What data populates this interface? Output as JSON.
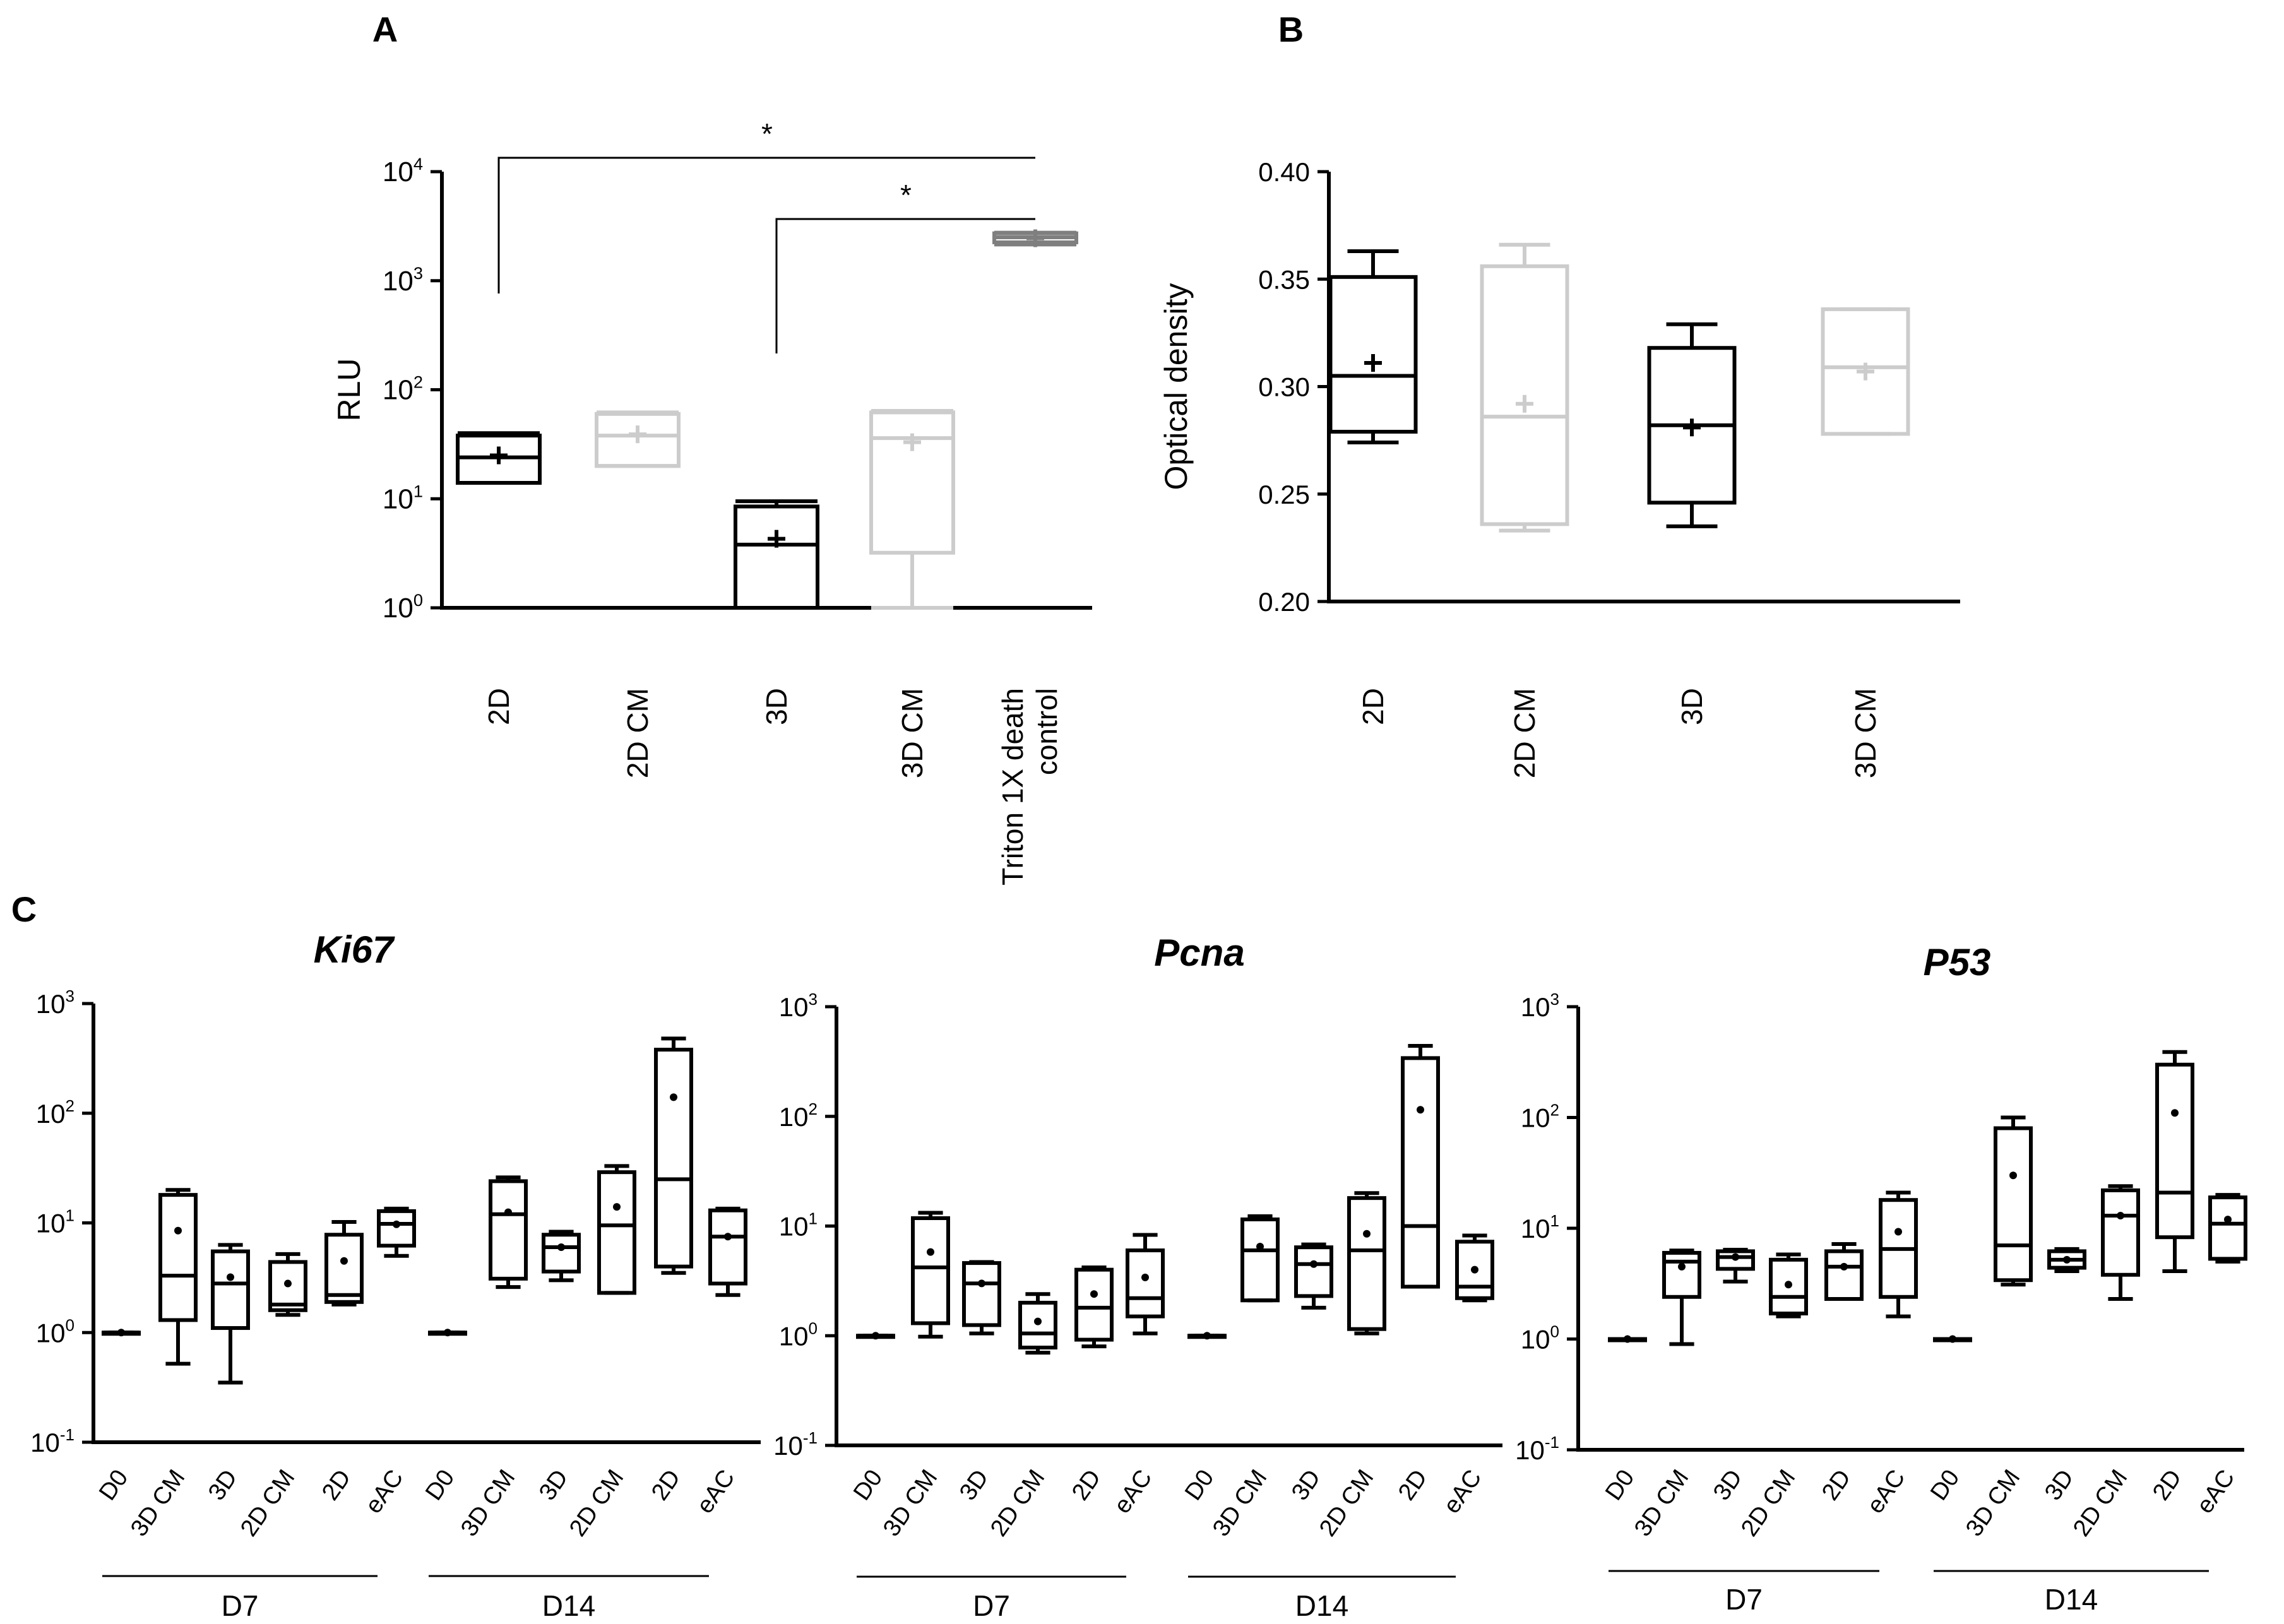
{
  "panel_labels": {
    "a": "A",
    "b": "B",
    "c": "C"
  },
  "colors": {
    "black": "#000000",
    "gray": "#cccccc",
    "triton": "#7f7f7f"
  },
  "chart_data": [
    {
      "id": "A",
      "type": "box",
      "scale": "log",
      "ylabel": "RLU",
      "ylim": [
        1,
        10000
      ],
      "yticks": [
        {
          "base": "10",
          "exp": "0"
        },
        {
          "base": "10",
          "exp": "1"
        },
        {
          "base": "10",
          "exp": "2"
        },
        {
          "base": "10",
          "exp": "3"
        },
        {
          "base": "10",
          "exp": "4"
        }
      ],
      "categories": [
        "2D",
        "2D CM",
        "3D",
        "3D CM",
        "Triton 1X death|control"
      ],
      "boxes": [
        {
          "color": "black",
          "min": 14,
          "q1": 14,
          "median": 24,
          "q3": 38,
          "max": 40,
          "mean": 25
        },
        {
          "color": "gray",
          "min": 20,
          "q1": 20,
          "median": 38,
          "q3": 60,
          "max": 62,
          "mean": 39
        },
        {
          "color": "black",
          "min": 1,
          "q1": 1,
          "median": 3.8,
          "q3": 8.5,
          "max": 9.5,
          "mean": 4.3
        },
        {
          "color": "gray",
          "min": 1,
          "q1": 3.2,
          "median": 36,
          "q3": 62,
          "max": 64,
          "mean": 33
        },
        {
          "color": "triton",
          "min": 2150,
          "q1": 2250,
          "median": 2500,
          "q3": 2720,
          "max": 2760,
          "mean": 2450
        }
      ],
      "significance": [
        {
          "from": 0,
          "to": 4,
          "label": "*"
        },
        {
          "from": 2,
          "to": 4,
          "label": "*"
        }
      ]
    },
    {
      "id": "B",
      "type": "box",
      "scale": "linear",
      "ylabel": "Optical density",
      "ylim": [
        0.2,
        0.4
      ],
      "yticks": [
        "0.20",
        "0.25",
        "0.30",
        "0.35",
        "0.40"
      ],
      "categories": [
        "2D",
        "2D CM",
        "3D",
        "3D CM"
      ],
      "boxes": [
        {
          "color": "black",
          "min": 0.274,
          "q1": 0.279,
          "median": 0.305,
          "q3": 0.351,
          "max": 0.363,
          "mean": 0.311
        },
        {
          "color": "gray",
          "min": 0.233,
          "q1": 0.236,
          "median": 0.286,
          "q3": 0.356,
          "max": 0.366,
          "mean": 0.292
        },
        {
          "color": "black",
          "min": 0.235,
          "q1": 0.246,
          "median": 0.282,
          "q3": 0.318,
          "max": 0.329,
          "mean": 0.281
        },
        {
          "color": "gray",
          "min": 0.278,
          "q1": 0.278,
          "median": 0.309,
          "q3": 0.336,
          "max": 0.336,
          "mean": 0.307
        }
      ]
    },
    {
      "id": "Ki67",
      "type": "box",
      "scale": "log",
      "title": "Ki67",
      "ylim": [
        0.1,
        1000
      ],
      "yticks": [
        {
          "base": "10",
          "exp": "-1"
        },
        {
          "base": "10",
          "exp": "0"
        },
        {
          "base": "10",
          "exp": "1"
        },
        {
          "base": "10",
          "exp": "2"
        },
        {
          "base": "10",
          "exp": "3"
        }
      ],
      "categories": [
        "D0",
        "3D CM",
        "3D",
        "2D CM",
        "2D",
        "eAC",
        "D0",
        "3D CM",
        "3D",
        "2D CM",
        "2D",
        "eAC"
      ],
      "groups": [
        {
          "label": "D7",
          "from": 0,
          "to": 5
        },
        {
          "label": "D14",
          "from": 6,
          "to": 11
        }
      ],
      "boxes": [
        {
          "min": 1,
          "q1": 1,
          "median": 1,
          "q3": 1,
          "max": 1,
          "mean": 1
        },
        {
          "min": 0.52,
          "q1": 1.3,
          "median": 3.3,
          "q3": 18,
          "max": 20,
          "mean": 8.5
        },
        {
          "min": 0.35,
          "q1": 1.1,
          "median": 2.8,
          "q3": 5.5,
          "max": 6.3,
          "mean": 3.2
        },
        {
          "min": 1.45,
          "q1": 1.6,
          "median": 1.8,
          "q3": 4.4,
          "max": 5.2,
          "mean": 2.8
        },
        {
          "min": 1.8,
          "q1": 1.9,
          "median": 2.2,
          "q3": 7.8,
          "max": 10.2,
          "mean": 4.5
        },
        {
          "min": 5,
          "q1": 6.2,
          "median": 9.8,
          "q3": 12.8,
          "max": 13.5,
          "mean": 9.7
        },
        {
          "min": 1,
          "q1": 1,
          "median": 1,
          "q3": 1,
          "max": 1,
          "mean": 1
        },
        {
          "min": 2.6,
          "q1": 3.1,
          "median": 12,
          "q3": 24,
          "max": 26,
          "mean": 12.5
        },
        {
          "min": 3,
          "q1": 3.6,
          "median": 6,
          "q3": 7.8,
          "max": 8.3,
          "mean": 6
        },
        {
          "min": 2.3,
          "q1": 2.3,
          "median": 9.5,
          "q3": 29,
          "max": 33,
          "mean": 14
        },
        {
          "min": 3.5,
          "q1": 4,
          "median": 25,
          "q3": 380,
          "max": 480,
          "mean": 140
        },
        {
          "min": 2.2,
          "q1": 2.8,
          "median": 7.5,
          "q3": 13,
          "max": 13.5,
          "mean": 7.5
        }
      ]
    },
    {
      "id": "Pcna",
      "type": "box",
      "scale": "log",
      "title": "Pcna",
      "ylim": [
        0.1,
        1000
      ],
      "yticks": [
        {
          "base": "10",
          "exp": "-1"
        },
        {
          "base": "10",
          "exp": "0"
        },
        {
          "base": "10",
          "exp": "1"
        },
        {
          "base": "10",
          "exp": "2"
        },
        {
          "base": "10",
          "exp": "3"
        }
      ],
      "categories": [
        "D0",
        "3D CM",
        "3D",
        "2D CM",
        "2D",
        "eAC",
        "D0",
        "3D CM",
        "3D",
        "2D CM",
        "2D",
        "eAC"
      ],
      "groups": [
        {
          "label": "D7",
          "from": 0,
          "to": 5
        },
        {
          "label": "D14",
          "from": 6,
          "to": 11
        }
      ],
      "boxes": [
        {
          "min": 1,
          "q1": 1,
          "median": 1,
          "q3": 1,
          "max": 1,
          "mean": 1
        },
        {
          "min": 0.98,
          "q1": 1.3,
          "median": 4.2,
          "q3": 11.8,
          "max": 13.2,
          "mean": 5.8
        },
        {
          "min": 1.05,
          "q1": 1.25,
          "median": 3,
          "q3": 4.6,
          "max": 4.7,
          "mean": 3
        },
        {
          "min": 0.7,
          "q1": 0.78,
          "median": 1.05,
          "q3": 2,
          "max": 2.4,
          "mean": 1.35
        },
        {
          "min": 0.8,
          "q1": 0.92,
          "median": 1.8,
          "q3": 4,
          "max": 4.2,
          "mean": 2.4
        },
        {
          "min": 1.05,
          "q1": 1.5,
          "median": 2.2,
          "q3": 6,
          "max": 8.3,
          "mean": 3.4
        },
        {
          "min": 1,
          "q1": 1,
          "median": 1,
          "q3": 1,
          "max": 1,
          "mean": 1
        },
        {
          "min": 2.1,
          "q1": 2.1,
          "median": 6,
          "q3": 11.5,
          "max": 12.3,
          "mean": 6.5
        },
        {
          "min": 1.8,
          "q1": 2.3,
          "median": 4.5,
          "q3": 6.4,
          "max": 6.8,
          "mean": 4.5
        },
        {
          "min": 1.05,
          "q1": 1.15,
          "median": 6,
          "q3": 18,
          "max": 20,
          "mean": 8.5
        },
        {
          "min": 2.8,
          "q1": 2.8,
          "median": 10,
          "q3": 340,
          "max": 440,
          "mean": 115
        },
        {
          "min": 2.1,
          "q1": 2.2,
          "median": 2.8,
          "q3": 7.2,
          "max": 8.2,
          "mean": 4
        }
      ]
    },
    {
      "id": "P53",
      "type": "box",
      "scale": "log",
      "title": "P53",
      "ylim": [
        0.1,
        1000
      ],
      "yticks": [
        {
          "base": "10",
          "exp": "-1"
        },
        {
          "base": "10",
          "exp": "0"
        },
        {
          "base": "10",
          "exp": "1"
        },
        {
          "base": "10",
          "exp": "2"
        },
        {
          "base": "10",
          "exp": "3"
        }
      ],
      "categories": [
        "D0",
        "3D CM",
        "3D",
        "2D CM",
        "2D",
        "eAC",
        "D0",
        "3D CM",
        "3D",
        "2D CM",
        "2D",
        "eAC"
      ],
      "groups": [
        {
          "label": "D7",
          "from": 0,
          "to": 5
        },
        {
          "label": "D14",
          "from": 6,
          "to": 11
        }
      ],
      "boxes": [
        {
          "min": 1,
          "q1": 1,
          "median": 1,
          "q3": 1,
          "max": 1,
          "mean": 1
        },
        {
          "min": 0.9,
          "q1": 2.4,
          "median": 5,
          "q3": 6,
          "max": 6.3,
          "mean": 4.5
        },
        {
          "min": 3.3,
          "q1": 4.3,
          "median": 5.5,
          "q3": 6.2,
          "max": 6.4,
          "mean": 5.5
        },
        {
          "min": 1.6,
          "q1": 1.7,
          "median": 2.4,
          "q3": 5.2,
          "max": 5.8,
          "mean": 3.1
        },
        {
          "min": 2.3,
          "q1": 2.3,
          "median": 4.5,
          "q3": 6.2,
          "max": 7.2,
          "mean": 4.5
        },
        {
          "min": 1.6,
          "q1": 2.4,
          "median": 6.5,
          "q3": 18,
          "max": 21,
          "mean": 9.3
        },
        {
          "min": 1,
          "q1": 1,
          "median": 1,
          "q3": 1,
          "max": 1,
          "mean": 1
        },
        {
          "min": 3.1,
          "q1": 3.4,
          "median": 7,
          "q3": 80,
          "max": 100,
          "mean": 30
        },
        {
          "min": 4.1,
          "q1": 4.4,
          "median": 5.2,
          "q3": 6.2,
          "max": 6.5,
          "mean": 5.2
        },
        {
          "min": 2.3,
          "q1": 3.8,
          "median": 13,
          "q3": 22,
          "max": 24,
          "mean": 13
        },
        {
          "min": 4.1,
          "q1": 8.3,
          "median": 21,
          "q3": 300,
          "max": 390,
          "mean": 110
        },
        {
          "min": 5,
          "q1": 5.3,
          "median": 11,
          "q3": 19,
          "max": 20,
          "mean": 12
        }
      ]
    }
  ]
}
